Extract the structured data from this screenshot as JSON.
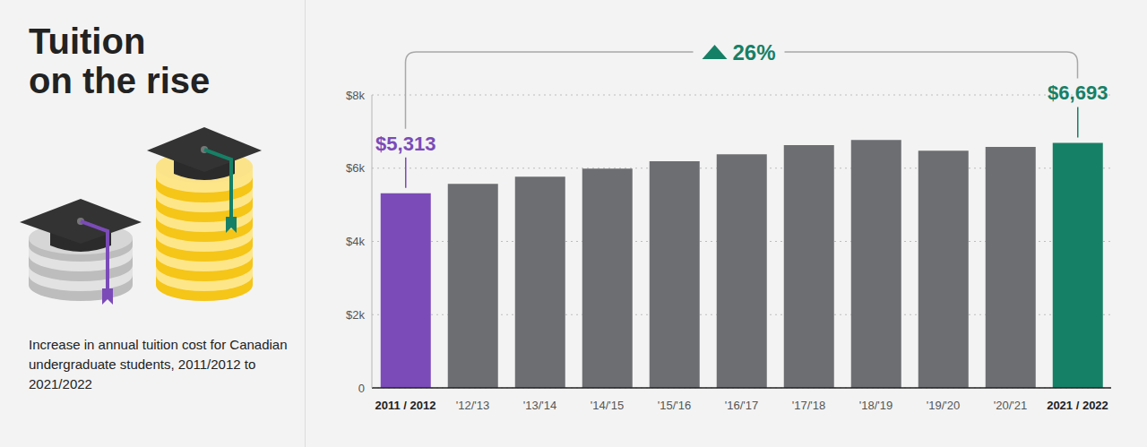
{
  "chart_data": {
    "type": "bar",
    "title": "Tuition on the rise",
    "subtitle": "Increase in annual tuition cost for Canadian undergraduate students, 2011/2012 to 2021/2022",
    "categories": [
      "2011 / 2012",
      "'12/'13",
      "'13/'14",
      "'14/'15",
      "'15/'16",
      "'16/'17",
      "'17/'18",
      "'18/'19",
      "'19/'20",
      "'20/'21",
      "2021 / 2022"
    ],
    "values": [
      5313,
      5570,
      5770,
      5990,
      6190,
      6380,
      6630,
      6770,
      6480,
      6580,
      6693
    ],
    "value_labels": [
      "$5,313",
      null,
      null,
      null,
      null,
      null,
      null,
      null,
      null,
      null,
      "$6,693"
    ],
    "data_labels": true,
    "colors": [
      "#7b4bb8",
      "#6d6e71",
      "#6d6e71",
      "#6d6e71",
      "#6d6e71",
      "#6d6e71",
      "#6d6e71",
      "#6d6e71",
      "#6d6e71",
      "#6d6e71",
      "#168066"
    ],
    "annotations": [
      {
        "text": "26%"
      }
    ],
    "ylim": [
      0,
      8000
    ],
    "yticks": [
      0,
      {
        "value": 2000,
        "label": "$2k"
      },
      {
        "value": 4000,
        "label": "$4k"
      },
      {
        "value": 6000,
        "label": "$6k"
      },
      {
        "value": 8000,
        "label": "$8k"
      }
    ],
    "grid": true
  }
}
